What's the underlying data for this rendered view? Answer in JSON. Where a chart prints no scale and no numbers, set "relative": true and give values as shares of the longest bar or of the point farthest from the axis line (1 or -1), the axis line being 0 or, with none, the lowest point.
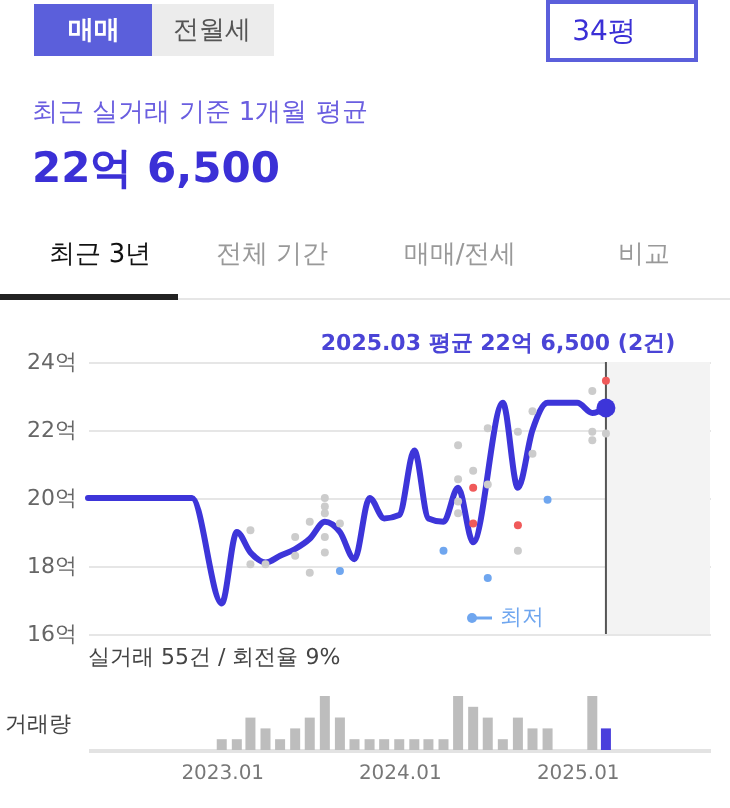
{
  "chart_data": [
    {
      "type": "line",
      "title": "22억 6,500",
      "subtitle": "최근 실거래 기준 1개월 평균",
      "annotations": [
        "매매",
        "전월세",
        "34평",
        "최근 3년",
        "전체 기간",
        "매매/전세",
        "비교",
        "2025.03 평균 22억 6,500 (2건)"
      ],
      "series": [
        {
          "type": "line",
          "color": "#3d35d9",
          "x": [
            "2022-04",
            "2022-11",
            "2023-01",
            "2023-02",
            "2023-03",
            "2023-04",
            "2023-05",
            "2023-06",
            "2023-07",
            "2023-08",
            "2023-09",
            "2023-10",
            "2023-11",
            "2023-12",
            "2024-01",
            "2024-02",
            "2024-03",
            "2024-04",
            "2024-05",
            "2024-06",
            "2024-08",
            "2024-09",
            "2024-10",
            "2024-11",
            "2024-12",
            "2025-01",
            "2025-02",
            "2025-03"
          ],
          "values": [
            20.0,
            20.0,
            16.9,
            19.0,
            18.4,
            18.1,
            18.3,
            18.5,
            18.8,
            19.3,
            19.0,
            18.2,
            20.0,
            19.4,
            19.5,
            21.4,
            19.4,
            19.3,
            20.3,
            18.7,
            22.8,
            20.3,
            22.0,
            22.8,
            22.8,
            22.8,
            22.5,
            22.65
          ]
        },
        {
          "type": "scatter",
          "color": "#cccccc",
          "x": [
            "2023-03",
            "2023-03",
            "2023-04",
            "2023-06",
            "2023-06",
            "2023-07",
            "2023-07",
            "2023-08",
            "2023-08",
            "2023-08",
            "2023-08",
            "2023-08",
            "2023-09",
            "2024-05",
            "2024-05",
            "2024-05",
            "2024-05",
            "2024-06",
            "2024-07",
            "2024-07",
            "2024-09",
            "2024-09",
            "2024-10",
            "2024-10",
            "2025-02",
            "2025-02",
            "2025-02",
            "2025-03"
          ],
          "values": [
            19.05,
            18.05,
            18.05,
            18.85,
            18.3,
            19.3,
            17.8,
            20.0,
            19.75,
            19.55,
            18.85,
            18.4,
            19.25,
            21.55,
            20.55,
            19.9,
            19.55,
            20.8,
            22.05,
            20.4,
            21.95,
            18.45,
            22.55,
            21.3,
            23.15,
            21.95,
            21.7,
            21.9
          ]
        },
        {
          "type": "scatter",
          "color": "#f05a5a",
          "x": [
            "2024-06",
            "2024-06",
            "2024-09",
            "2025-03"
          ],
          "values": [
            20.3,
            19.25,
            19.2,
            23.45
          ]
        },
        {
          "type": "scatter",
          "name": "최저",
          "color": "#6fa6ef",
          "x": [
            "2023-09",
            "2024-04",
            "2024-07",
            "2024-11"
          ],
          "values": [
            17.85,
            18.45,
            17.65,
            19.95
          ]
        },
        {
          "type": "scatter",
          "color": "#3d35d9",
          "x": [
            "2025-03"
          ],
          "values": [
            22.65
          ]
        }
      ],
      "xlim": [
        "2022-04",
        "2025-10"
      ],
      "ylim": [
        16,
        24
      ],
      "yticks": [
        {
          "value": 16,
          "label": "16억"
        },
        {
          "value": 18,
          "label": "18억"
        },
        {
          "value": 20,
          "label": "20억"
        },
        {
          "value": 22,
          "label": "22억"
        },
        {
          "value": 24,
          "label": "24억"
        }
      ],
      "grid": "y",
      "legend": "bottom right",
      "tick_labels": "y",
      "ref_lines": [
        {
          "axis": "x",
          "value": "2025-03",
          "color": "#555555"
        }
      ],
      "bands": [
        {
          "axis": "x",
          "from": "2025-03",
          "to": "2025-10",
          "color": "#f3f3f3"
        }
      ]
    },
    {
      "type": "bar",
      "relative": true,
      "ylabel": "거래량",
      "annotations": [
        "실거래 55건 / 회전율 9%"
      ],
      "x": [
        "2023-01",
        "2023-02",
        "2023-03",
        "2023-04",
        "2023-05",
        "2023-06",
        "2023-07",
        "2023-08",
        "2023-09",
        "2023-10",
        "2023-11",
        "2023-12",
        "2024-01",
        "2024-02",
        "2024-03",
        "2024-04",
        "2024-05",
        "2024-06",
        "2024-07",
        "2024-08",
        "2024-09",
        "2024-10",
        "2024-11",
        "2025-02",
        "2025-03"
      ],
      "values": [
        0.2,
        0.2,
        0.6,
        0.4,
        0.2,
        0.4,
        0.6,
        1,
        0.6,
        0.2,
        0.2,
        0.2,
        0.2,
        0.2,
        0.2,
        0.2,
        1,
        0.8,
        0.6,
        0.2,
        0.6,
        0.4,
        0.4,
        1,
        0.4
      ],
      "colors": [
        "#bdbdbd",
        "#bdbdbd",
        "#bdbdbd",
        "#bdbdbd",
        "#bdbdbd",
        "#bdbdbd",
        "#bdbdbd",
        "#bdbdbd",
        "#bdbdbd",
        "#bdbdbd",
        "#bdbdbd",
        "#bdbdbd",
        "#bdbdbd",
        "#bdbdbd",
        "#bdbdbd",
        "#bdbdbd",
        "#bdbdbd",
        "#bdbdbd",
        "#bdbdbd",
        "#bdbdbd",
        "#bdbdbd",
        "#bdbdbd",
        "#bdbdbd",
        "#bdbdbd",
        "#4a3fdc"
      ],
      "xlim": [
        "2022-04",
        "2025-10"
      ],
      "xticks": [
        {
          "value": "2023-01",
          "label": "2023.01"
        },
        {
          "value": "2024-01",
          "label": "2024.01"
        },
        {
          "value": "2025-01",
          "label": "2025.01"
        }
      ],
      "tick_labels": "x"
    }
  ]
}
